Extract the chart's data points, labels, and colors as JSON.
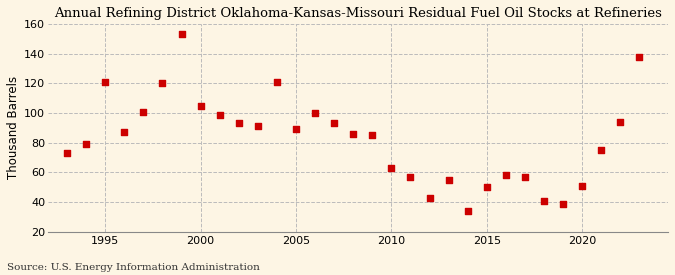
{
  "title": "Annual Refining District Oklahoma-Kansas-Missouri Residual Fuel Oil Stocks at Refineries",
  "ylabel": "Thousand Barrels",
  "source": "Source: U.S. Energy Information Administration",
  "years": [
    1993,
    1994,
    1995,
    1996,
    1997,
    1998,
    1999,
    2000,
    2001,
    2002,
    2003,
    2004,
    2005,
    2006,
    2007,
    2008,
    2009,
    2010,
    2011,
    2012,
    2013,
    2014,
    2015,
    2016,
    2017,
    2018,
    2019,
    2020,
    2021,
    2022,
    2023
  ],
  "values": [
    73,
    79,
    121,
    87,
    101,
    120,
    153,
    105,
    99,
    93,
    91,
    121,
    89,
    100,
    93,
    86,
    85,
    63,
    57,
    43,
    55,
    34,
    50,
    58,
    57,
    41,
    39,
    51,
    75,
    94,
    138
  ],
  "marker_color": "#cc0000",
  "marker_size": 18,
  "background_color": "#fdf5e4",
  "grid_color": "#bbbbbb",
  "xlim": [
    1992,
    2024.5
  ],
  "ylim": [
    20,
    160
  ],
  "yticks": [
    20,
    40,
    60,
    80,
    100,
    120,
    140,
    160
  ],
  "xticks": [
    1995,
    2000,
    2005,
    2010,
    2015,
    2020
  ],
  "title_fontsize": 9.5,
  "label_fontsize": 8.5,
  "tick_fontsize": 8,
  "source_fontsize": 7.5
}
